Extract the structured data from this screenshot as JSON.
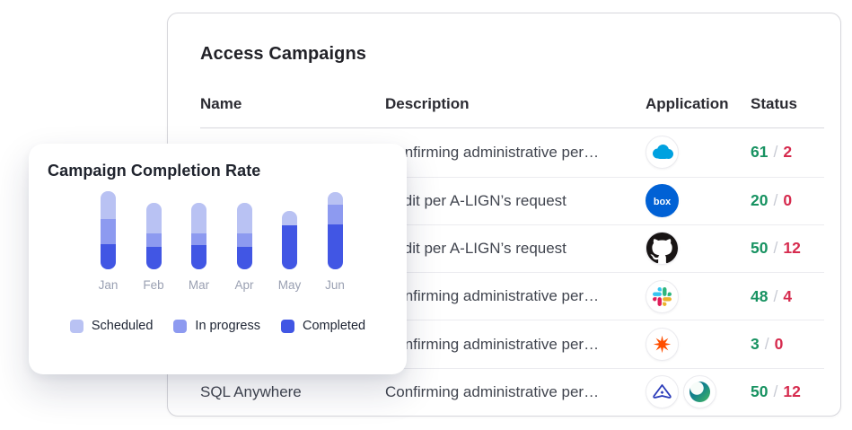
{
  "campaigns_card": {
    "title": "Access Campaigns",
    "columns": [
      "Name",
      "Description",
      "Application",
      "Status"
    ],
    "status_separator": "/",
    "status_colors": {
      "approved": "#179261",
      "slash": "#c7cad3",
      "denied": "#d62b4e"
    },
    "rows": [
      {
        "name": "",
        "description": "Confirming administrative per…",
        "app_icons": [
          "salesforce"
        ],
        "approved": "61",
        "denied": "2"
      },
      {
        "name": "",
        "description": "Audit per A-LIGN’s request",
        "app_icons": [
          "box"
        ],
        "approved": "20",
        "denied": "0"
      },
      {
        "name": "",
        "description": "Audit per A-LIGN’s request",
        "app_icons": [
          "github"
        ],
        "approved": "50",
        "denied": "12"
      },
      {
        "name": "",
        "description": "Confirming administrative per…",
        "app_icons": [
          "slack"
        ],
        "approved": "48",
        "denied": "4"
      },
      {
        "name": "",
        "description": "Confirming administrative per…",
        "app_icons": [
          "zapier"
        ],
        "approved": "3",
        "denied": "0"
      },
      {
        "name": "SQL Anywhere",
        "description": "Confirming administrative per…",
        "app_icons": [
          "sql-anywhere",
          "teal-sphere"
        ],
        "approved": "50",
        "denied": "12"
      }
    ]
  },
  "chart_data": {
    "type": "bar",
    "stacked": true,
    "title": "Campaign Completion Rate",
    "categories": [
      "Jan",
      "Feb",
      "Mar",
      "Apr",
      "May",
      "Jun"
    ],
    "series": [
      {
        "name": "Scheduled",
        "color": "#b9c2f3",
        "values": [
          31,
          34,
          34,
          34,
          16,
          14
        ]
      },
      {
        "name": "In progress",
        "color": "#8d9af0",
        "values": [
          28,
          15,
          13,
          15,
          0,
          22
        ]
      },
      {
        "name": "Completed",
        "color": "#4156e4",
        "values": [
          28,
          25,
          27,
          25,
          49,
          50
        ]
      }
    ],
    "unit": "px-height-estimate",
    "legend_position": "bottom",
    "grid": false,
    "axes_hidden": true
  }
}
